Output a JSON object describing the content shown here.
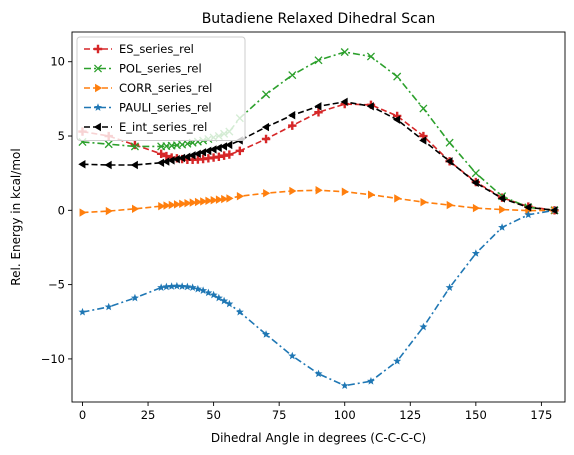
{
  "chart_data": {
    "type": "line",
    "title": "Butadiene Relaxed Dihedral Scan",
    "xlabel": "Dihedral Angle in degrees (C-C-C-C)",
    "ylabel": "Rel. Energy in kcal/mol",
    "xlim": [
      -4,
      184
    ],
    "ylim": [
      -12.9,
      12.0
    ],
    "xticks": [
      0,
      25,
      50,
      75,
      100,
      125,
      150,
      175
    ],
    "yticks": [
      -10,
      -5,
      0,
      5,
      10
    ],
    "grid": false,
    "legend_position": "top-left",
    "series": [
      {
        "name": "ES_series_rel",
        "color": "#d62728",
        "line_style": "dashed",
        "marker": "plus",
        "x": [
          0,
          10,
          20,
          30,
          32,
          34,
          36,
          38,
          40,
          42,
          44,
          46,
          48,
          50,
          52,
          54,
          56,
          60,
          70,
          80,
          90,
          100,
          110,
          120,
          130,
          140,
          150,
          160,
          170,
          180
        ],
        "y": [
          5.3,
          5.0,
          4.4,
          3.8,
          3.65,
          3.55,
          3.5,
          3.45,
          3.4,
          3.4,
          3.42,
          3.45,
          3.5,
          3.55,
          3.6,
          3.68,
          3.75,
          4.0,
          4.8,
          5.7,
          6.6,
          7.15,
          7.1,
          6.35,
          5.0,
          3.3,
          1.9,
          0.85,
          0.25,
          0.0
        ]
      },
      {
        "name": "POL_series_rel",
        "color": "#2ca02c",
        "line_style": "dashdot",
        "marker": "x",
        "x": [
          0,
          10,
          20,
          30,
          32,
          34,
          36,
          38,
          40,
          42,
          44,
          46,
          48,
          50,
          52,
          54,
          56,
          60,
          70,
          80,
          90,
          100,
          110,
          120,
          130,
          140,
          150,
          160,
          170,
          180
        ],
        "y": [
          4.6,
          4.45,
          4.3,
          4.3,
          4.32,
          4.35,
          4.38,
          4.42,
          4.48,
          4.55,
          4.62,
          4.7,
          4.8,
          4.9,
          5.0,
          5.15,
          5.3,
          6.2,
          7.8,
          9.1,
          10.1,
          10.65,
          10.35,
          9.0,
          6.85,
          4.55,
          2.5,
          0.95,
          0.2,
          0.0
        ]
      },
      {
        "name": "CORR_series_rel",
        "color": "#ff7f0e",
        "line_style": "dashed",
        "marker": "triangle-right",
        "x": [
          0,
          10,
          20,
          30,
          32,
          34,
          36,
          38,
          40,
          42,
          44,
          46,
          48,
          50,
          52,
          54,
          56,
          60,
          70,
          80,
          90,
          100,
          110,
          120,
          130,
          140,
          150,
          160,
          170,
          180
        ],
        "y": [
          -0.15,
          -0.05,
          0.1,
          0.28,
          0.32,
          0.36,
          0.4,
          0.44,
          0.48,
          0.52,
          0.56,
          0.6,
          0.64,
          0.68,
          0.72,
          0.76,
          0.8,
          0.95,
          1.15,
          1.3,
          1.35,
          1.25,
          1.05,
          0.8,
          0.55,
          0.35,
          0.15,
          0.05,
          -0.02,
          0.0
        ]
      },
      {
        "name": "PAULI_series_rel",
        "color": "#1f77b4",
        "line_style": "dashdot",
        "marker": "star",
        "x": [
          0,
          10,
          20,
          30,
          32,
          34,
          36,
          38,
          40,
          42,
          44,
          46,
          48,
          50,
          52,
          54,
          56,
          60,
          70,
          80,
          90,
          100,
          110,
          120,
          130,
          140,
          150,
          160,
          170,
          180
        ],
        "y": [
          -6.85,
          -6.5,
          -5.9,
          -5.2,
          -5.15,
          -5.12,
          -5.1,
          -5.12,
          -5.15,
          -5.2,
          -5.3,
          -5.4,
          -5.55,
          -5.7,
          -5.9,
          -6.1,
          -6.3,
          -6.85,
          -8.35,
          -9.8,
          -11.0,
          -11.8,
          -11.5,
          -10.15,
          -7.85,
          -5.2,
          -2.9,
          -1.15,
          -0.3,
          0.0
        ]
      },
      {
        "name": "E_int_series_rel",
        "color": "#000000",
        "line_style": "dashed",
        "marker": "triangle-left",
        "x": [
          0,
          10,
          20,
          30,
          32,
          34,
          36,
          38,
          40,
          42,
          44,
          46,
          48,
          50,
          52,
          54,
          56,
          60,
          70,
          80,
          90,
          100,
          110,
          120,
          130,
          140,
          150,
          160,
          170,
          180
        ],
        "y": [
          3.1,
          3.05,
          3.05,
          3.2,
          3.28,
          3.36,
          3.44,
          3.52,
          3.6,
          3.7,
          3.8,
          3.9,
          4.0,
          4.1,
          4.2,
          4.3,
          4.4,
          4.7,
          5.6,
          6.4,
          7.0,
          7.3,
          7.0,
          6.1,
          4.7,
          3.3,
          1.85,
          0.8,
          0.2,
          0.0
        ]
      }
    ]
  }
}
